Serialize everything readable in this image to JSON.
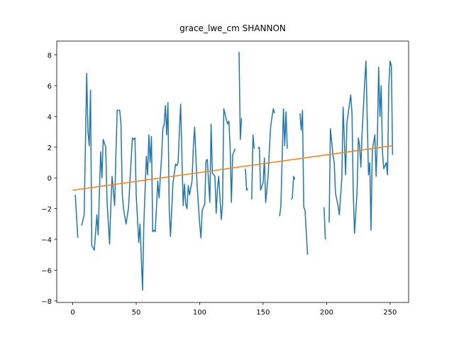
{
  "chart_data": {
    "type": "line",
    "title": "grace_lwe_cm SHANNON",
    "xlim": [
      -12.6,
      264.6
    ],
    "ylim": [
      -8.1,
      8.9
    ],
    "xticks": [
      0,
      50,
      100,
      150,
      200,
      250
    ],
    "yticks": [
      {
        "value": -8,
        "label": "−8"
      },
      {
        "value": -6,
        "label": "−6"
      },
      {
        "value": -4,
        "label": "−4"
      },
      {
        "value": -2,
        "label": "−2"
      },
      0,
      2,
      4,
      6,
      8
    ],
    "series": [
      {
        "color": "#1f77b4",
        "x": [
          2,
          4,
          5,
          7,
          9,
          11,
          12,
          13,
          14,
          15,
          17,
          19,
          20,
          22,
          23,
          24,
          26,
          27,
          29,
          30,
          31,
          33,
          34,
          35,
          37,
          38,
          39,
          40,
          42,
          44,
          45,
          47,
          48,
          49,
          50,
          52,
          53,
          55,
          56,
          58,
          59,
          60,
          61,
          62,
          63,
          64,
          65,
          67,
          68,
          70,
          71,
          72,
          73,
          74,
          75,
          76,
          77,
          79,
          81,
          82,
          83,
          84,
          85,
          87,
          88,
          89,
          90,
          91,
          92,
          94,
          95,
          96,
          98,
          100,
          101,
          102,
          104,
          105,
          106,
          108,
          109,
          110,
          112,
          113,
          114,
          115,
          117,
          118,
          119,
          121,
          122,
          123,
          124,
          125,
          126,
          128,
          130,
          131,
          132,
          133,
          134,
          136,
          137,
          138,
          139,
          141,
          142,
          143,
          144,
          146,
          147,
          148,
          150,
          151,
          152,
          154,
          155,
          156,
          158,
          159,
          161,
          163,
          164,
          166,
          167,
          168,
          169,
          170,
          172,
          173,
          174,
          175,
          177,
          179,
          180,
          181,
          182,
          183,
          185,
          190,
          198,
          199,
          200,
          202,
          203,
          205,
          206,
          207,
          209,
          210,
          211,
          212,
          213,
          215,
          216,
          217,
          219,
          220,
          221,
          222,
          224,
          225,
          226,
          227,
          228,
          230,
          231,
          233,
          234,
          235,
          236,
          238,
          239,
          240,
          241,
          242,
          243,
          244,
          245,
          247,
          248,
          249,
          250,
          251,
          252
        ],
        "values": [
          -1.1,
          -3.9,
          null,
          -3.1,
          -2.4,
          6.8,
          3,
          2.1,
          5.7,
          -4.4,
          -4.7,
          -2.4,
          -3.7,
          1.7,
          0,
          2.5,
          2,
          -1.5,
          -4.3,
          -1.8,
          0.1,
          -1.8,
          1.5,
          4.4,
          4.4,
          3.5,
          -1,
          -2,
          -3,
          -1.9,
          -0.3,
          2.6,
          2.5,
          2.6,
          -1.1,
          -4.2,
          -3,
          -7.3,
          -3,
          1.4,
          0.2,
          2.8,
          1,
          2.7,
          -3.5,
          -3.4,
          -3.5,
          -0.2,
          -1.3,
          1.4,
          3.2,
          3.5,
          4.7,
          2.8,
          4.9,
          -2,
          -3.8,
          -0.3,
          0.9,
          0.8,
          1,
          3,
          4.8,
          -1.8,
          -0.4,
          -1.7,
          -2,
          -0.5,
          -1.1,
          -0.2,
          2,
          3.3,
          -0.5,
          -3,
          -3.9,
          -2.1,
          -1.7,
          1.1,
          1.2,
          -1.6,
          3.5,
          0.3,
          0.1,
          -2.3,
          -0.7,
          0.1,
          -2.7,
          -1.7,
          4.5,
          3.8,
          3.5,
          3.7,
          2,
          -1.6,
          1.5,
          1.9,
          null,
          8.2,
          2.5,
          3.9,
          null,
          0.6,
          -0.8,
          -0.7,
          null,
          -1.4,
          2.8,
          1.9,
          null,
          1.9,
          2,
          -0.8,
          -0.3,
          1.3,
          -1.6,
          0.2,
          2,
          3.4,
          4.5,
          4.2,
          null,
          -2.5,
          -1.8,
          4.5,
          2.1,
          4.3,
          1.9,
          null,
          -1.4,
          -1.3,
          0.1,
          -0.1,
          null,
          4.2,
          3.1,
          4.4,
          -1.9,
          -2.1,
          -5,
          null,
          -1.9,
          -4,
          null,
          -2.9,
          3.2,
          1.5,
          1,
          -1,
          -1.8,
          -2.4,
          -1.2,
          0,
          4.6,
          0.2,
          3.6,
          4.2,
          5.4,
          4.2,
          -1,
          -3.6,
          -0.9,
          2.6,
          2.1,
          0.7,
          3,
          6.2,
          7.6,
          0.2,
          1,
          -3.4,
          1.8,
          2.8,
          0.1,
          2.5,
          7.2,
          4,
          6,
          1.7,
          0.6,
          1,
          0.2,
          6,
          7.6,
          7.3,
          1.5
        ]
      },
      {
        "color": "#ff7f0e",
        "x": [
          0,
          252
        ],
        "values": [
          -0.8,
          2.1
        ]
      }
    ]
  }
}
